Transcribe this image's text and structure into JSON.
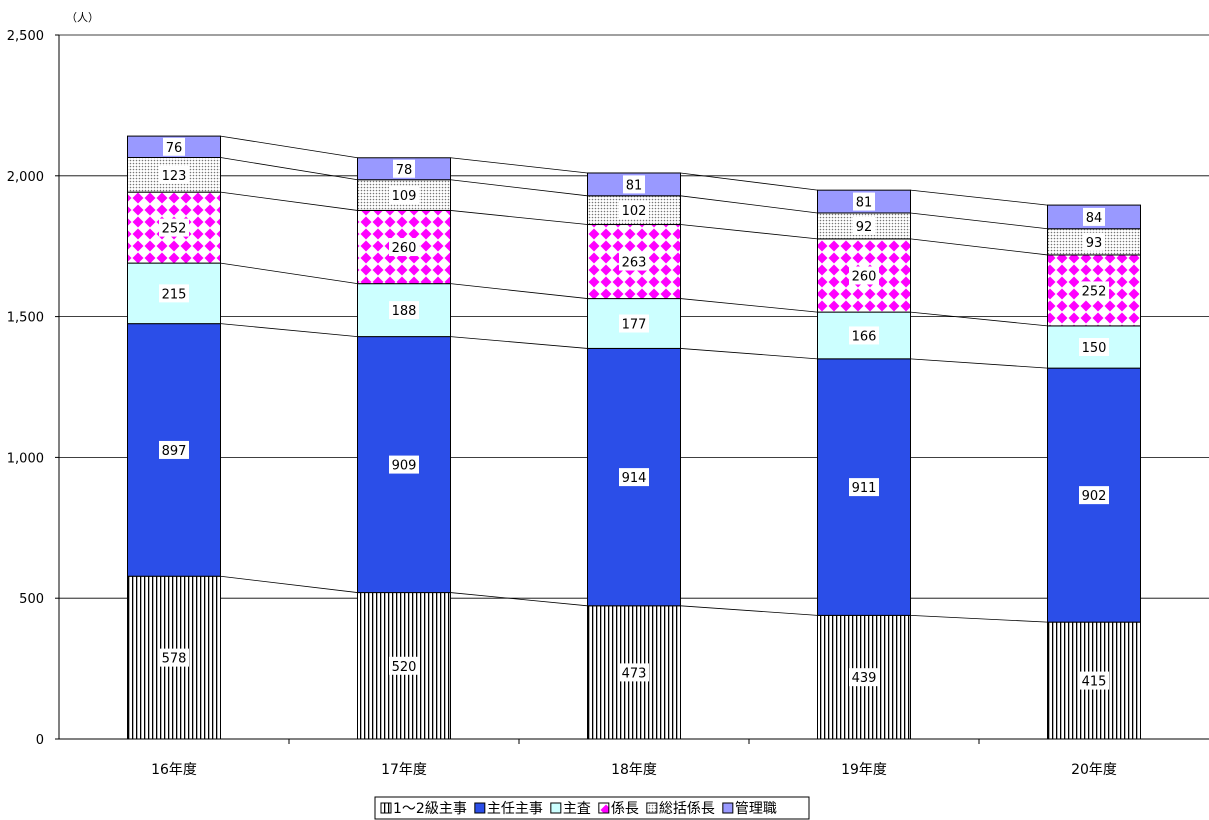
{
  "chart_data": {
    "type": "bar",
    "stacked": true,
    "unit_label": "（人）",
    "categories": [
      "16年度",
      "17年度",
      "18年度",
      "19年度",
      "20年度"
    ],
    "ylim": [
      0,
      2500
    ],
    "yticks": [
      0,
      500,
      1000,
      1500,
      2000,
      2500
    ],
    "ytick_labels": [
      "0",
      "500",
      "1,000",
      "1,500",
      "2,000",
      "2,500"
    ],
    "grid": true,
    "legend_position": "bottom",
    "series": [
      {
        "name": "1～2級主事",
        "values": [
          578,
          520,
          473,
          439,
          415
        ],
        "pattern": "vstripes",
        "color": "#ffffff"
      },
      {
        "name": "主任主事",
        "values": [
          897,
          909,
          914,
          911,
          902
        ],
        "pattern": "solid",
        "color": "#2b4ee8"
      },
      {
        "name": "主査",
        "values": [
          215,
          188,
          177,
          166,
          150
        ],
        "pattern": "solid",
        "color": "#ccffff"
      },
      {
        "name": "係長",
        "values": [
          252,
          260,
          263,
          260,
          252
        ],
        "pattern": "diamonds",
        "color": "#ff00ff"
      },
      {
        "name": "総括係長",
        "values": [
          123,
          109,
          102,
          92,
          93
        ],
        "pattern": "dots",
        "color": "#dddddd"
      },
      {
        "name": "管理職",
        "values": [
          76,
          78,
          81,
          81,
          84
        ],
        "pattern": "solid",
        "color": "#9999ff"
      }
    ]
  }
}
